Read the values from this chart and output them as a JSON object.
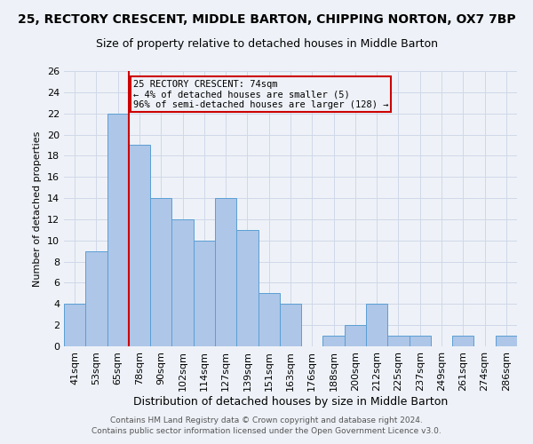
{
  "title": "25, RECTORY CRESCENT, MIDDLE BARTON, CHIPPING NORTON, OX7 7BP",
  "subtitle": "Size of property relative to detached houses in Middle Barton",
  "xlabel": "Distribution of detached houses by size in Middle Barton",
  "ylabel": "Number of detached properties",
  "footnote1": "Contains HM Land Registry data © Crown copyright and database right 2024.",
  "footnote2": "Contains public sector information licensed under the Open Government Licence v3.0.",
  "categories": [
    "41sqm",
    "53sqm",
    "65sqm",
    "78sqm",
    "90sqm",
    "102sqm",
    "114sqm",
    "127sqm",
    "139sqm",
    "151sqm",
    "163sqm",
    "176sqm",
    "188sqm",
    "200sqm",
    "212sqm",
    "225sqm",
    "237sqm",
    "249sqm",
    "261sqm",
    "274sqm",
    "286sqm"
  ],
  "values": [
    4,
    9,
    22,
    19,
    14,
    12,
    10,
    14,
    11,
    5,
    4,
    0,
    1,
    2,
    4,
    1,
    1,
    0,
    1,
    0,
    1
  ],
  "bar_color": "#aec6e8",
  "bar_edge_color": "#5a9fd4",
  "property_line_x": 2.5,
  "property_line_color": "#cc0000",
  "annotation_box_color": "#cc0000",
  "annotation_line1": "25 RECTORY CRESCENT: 74sqm",
  "annotation_line2": "← 4% of detached houses are smaller (5)",
  "annotation_line3": "96% of semi-detached houses are larger (128) →",
  "ylim": [
    0,
    26
  ],
  "yticks": [
    0,
    2,
    4,
    6,
    8,
    10,
    12,
    14,
    16,
    18,
    20,
    22,
    24,
    26
  ],
  "grid_color": "#d0d8e8",
  "background_color": "#eef2f8",
  "title_fontsize": 10,
  "subtitle_fontsize": 9,
  "xlabel_fontsize": 9,
  "ylabel_fontsize": 8,
  "tick_fontsize": 8,
  "annotation_fontsize": 7.5,
  "footnote_fontsize": 6.5
}
